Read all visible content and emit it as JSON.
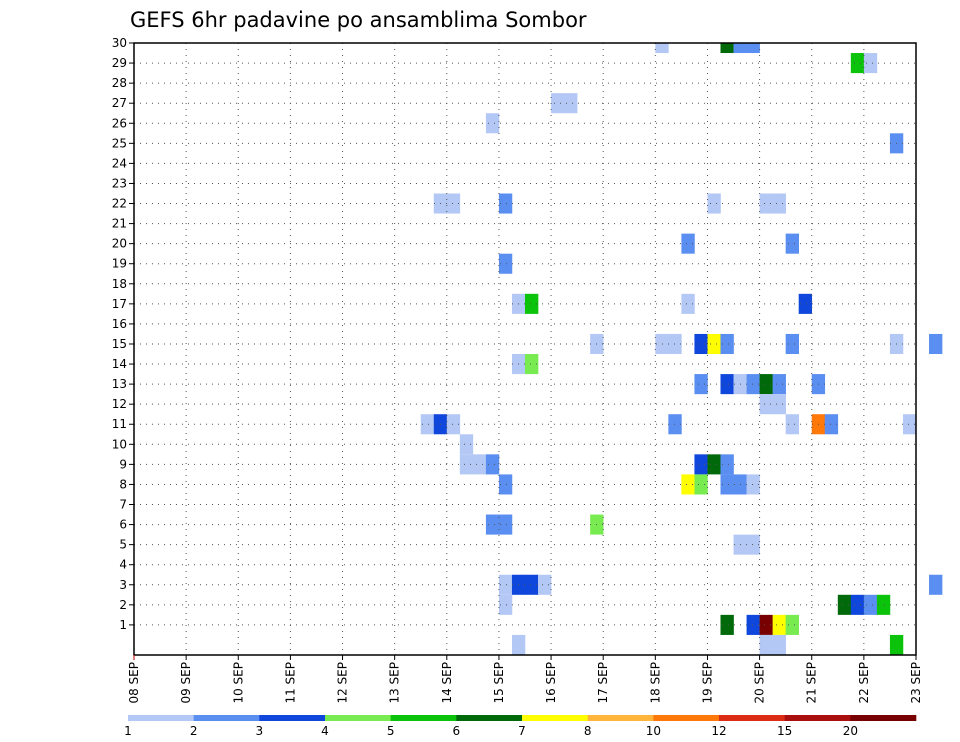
{
  "chart_data": {
    "type": "heatmap",
    "title": "GEFS 6hr padavine po ansamblima Sombor",
    "xlabel": "",
    "ylabel": "",
    "x_start": "2021-09-08",
    "x_ticks": [
      "08 SEP",
      "09 SEP",
      "10 SEP",
      "11 SEP",
      "12 SEP",
      "13 SEP",
      "14 SEP",
      "15 SEP",
      "16 SEP",
      "17 SEP",
      "18 SEP",
      "19 SEP",
      "20 SEP",
      "21 SEP",
      "22 SEP",
      "23 SEP"
    ],
    "y_ticks": [
      "1",
      "2",
      "3",
      "4",
      "5",
      "6",
      "7",
      "8",
      "9",
      "10",
      "11",
      "12",
      "13",
      "14",
      "15",
      "16",
      "17",
      "18",
      "19",
      "20",
      "21",
      "22",
      "23",
      "24",
      "25",
      "26",
      "27",
      "28",
      "29",
      "30"
    ],
    "ylim": [
      0,
      30
    ],
    "grid": true,
    "legend": {
      "placement": "bottom",
      "labels": [
        "1",
        "2",
        "3",
        "4",
        "5",
        "6",
        "7",
        "8",
        "10",
        "12",
        "15",
        "20"
      ],
      "colors": [
        "#b4c8f5",
        "#5a8ef0",
        "#0f46dc",
        "#78eb50",
        "#0ac30a",
        "#00690a",
        "#ffff00",
        "#ffb43c",
        "#ff780a",
        "#dc2d14",
        "#aa0f0f",
        "#780000"
      ]
    },
    "cells": [
      {
        "x": "09-19 06",
        "member": 30,
        "level": 6
      },
      {
        "x": "09-19 12",
        "member": 30,
        "level": 2
      },
      {
        "x": "09-18 00",
        "member": 30,
        "level": 1
      },
      {
        "x": "09-19 18",
        "member": 30,
        "level": 2
      },
      {
        "x": "09-21 18",
        "member": 29,
        "level": 5
      },
      {
        "x": "09-22 00",
        "member": 29,
        "level": 1
      },
      {
        "x": "09-16 00",
        "member": 27,
        "level": 1
      },
      {
        "x": "09-16 06",
        "member": 27,
        "level": 1
      },
      {
        "x": "09-14 18",
        "member": 26,
        "level": 1
      },
      {
        "x": "09-22 12",
        "member": 25,
        "level": 2
      },
      {
        "x": "09-13 18",
        "member": 22,
        "level": 1
      },
      {
        "x": "09-14 00",
        "member": 22,
        "level": 1
      },
      {
        "x": "09-15 00",
        "member": 22,
        "level": 2
      },
      {
        "x": "09-19 00",
        "member": 22,
        "level": 1
      },
      {
        "x": "09-20 06",
        "member": 22,
        "level": 1
      },
      {
        "x": "09-20 00",
        "member": 22,
        "level": 1
      },
      {
        "x": "09-18 12",
        "member": 20,
        "level": 2
      },
      {
        "x": "09-20 12",
        "member": 20,
        "level": 2
      },
      {
        "x": "09-15 00",
        "member": 19,
        "level": 2
      },
      {
        "x": "09-15 06",
        "member": 17,
        "level": 1
      },
      {
        "x": "09-15 12",
        "member": 17,
        "level": 5
      },
      {
        "x": "09-18 12",
        "member": 17,
        "level": 1
      },
      {
        "x": "09-20 18",
        "member": 17,
        "level": 3
      },
      {
        "x": "09-16 18",
        "member": 15,
        "level": 1
      },
      {
        "x": "09-18 00",
        "member": 15,
        "level": 1
      },
      {
        "x": "09-18 06",
        "member": 15,
        "level": 1
      },
      {
        "x": "09-18 18",
        "member": 15,
        "level": 3
      },
      {
        "x": "09-19 00",
        "member": 15,
        "level": 7
      },
      {
        "x": "09-19 06",
        "member": 15,
        "level": 2
      },
      {
        "x": "09-20 12",
        "member": 15,
        "level": 2
      },
      {
        "x": "09-22 12",
        "member": 15,
        "level": 1
      },
      {
        "x": "09-23 06",
        "member": 15,
        "level": 2
      },
      {
        "x": "09-15 06",
        "member": 14,
        "level": 1
      },
      {
        "x": "09-15 12",
        "member": 14,
        "level": 4
      },
      {
        "x": "09-18 18",
        "member": 13,
        "level": 2
      },
      {
        "x": "09-19 06",
        "member": 13,
        "level": 3
      },
      {
        "x": "09-19 12",
        "member": 13,
        "level": 1
      },
      {
        "x": "09-19 18",
        "member": 13,
        "level": 2
      },
      {
        "x": "09-20 00",
        "member": 13,
        "level": 6
      },
      {
        "x": "09-20 06",
        "member": 13,
        "level": 2
      },
      {
        "x": "09-21 00",
        "member": 13,
        "level": 2
      },
      {
        "x": "09-20 06",
        "member": 12,
        "level": 1
      },
      {
        "x": "09-20 00",
        "member": 12,
        "level": 1
      },
      {
        "x": "09-13 12",
        "member": 11,
        "level": 1
      },
      {
        "x": "09-13 18",
        "member": 11,
        "level": 3
      },
      {
        "x": "09-14 00",
        "member": 11,
        "level": 1
      },
      {
        "x": "09-18 06",
        "member": 11,
        "level": 2
      },
      {
        "x": "09-20 12",
        "member": 11,
        "level": 1
      },
      {
        "x": "09-21 00",
        "member": 11,
        "level": 9
      },
      {
        "x": "09-21 06",
        "member": 11,
        "level": 2
      },
      {
        "x": "09-22 18",
        "member": 11,
        "level": 1
      },
      {
        "x": "09-14 06",
        "member": 10,
        "level": 1
      },
      {
        "x": "09-14 06",
        "member": 9,
        "level": 1
      },
      {
        "x": "09-14 12",
        "member": 9,
        "level": 1
      },
      {
        "x": "09-14 18",
        "member": 9,
        "level": 2
      },
      {
        "x": "09-18 18",
        "member": 9,
        "level": 3
      },
      {
        "x": "09-19 00",
        "member": 9,
        "level": 6
      },
      {
        "x": "09-19 06",
        "member": 9,
        "level": 2
      },
      {
        "x": "09-15 00",
        "member": 8,
        "level": 2
      },
      {
        "x": "09-18 12",
        "member": 8,
        "level": 7
      },
      {
        "x": "09-18 18",
        "member": 8,
        "level": 4
      },
      {
        "x": "09-19 06",
        "member": 8,
        "level": 2
      },
      {
        "x": "09-19 12",
        "member": 8,
        "level": 2
      },
      {
        "x": "09-19 18",
        "member": 8,
        "level": 1
      },
      {
        "x": "09-14 18",
        "member": 6,
        "level": 2
      },
      {
        "x": "09-15 00",
        "member": 6,
        "level": 2
      },
      {
        "x": "09-16 18",
        "member": 6,
        "level": 4
      },
      {
        "x": "09-19 12",
        "member": 5,
        "level": 1
      },
      {
        "x": "09-19 18",
        "member": 5,
        "level": 1
      },
      {
        "x": "09-15 00",
        "member": 3,
        "level": 1
      },
      {
        "x": "09-15 06",
        "member": 3,
        "level": 3
      },
      {
        "x": "09-15 12",
        "member": 3,
        "level": 3
      },
      {
        "x": "09-15 18",
        "member": 3,
        "level": 1
      },
      {
        "x": "09-23 06",
        "member": 3,
        "level": 2
      },
      {
        "x": "09-15 00",
        "member": 2,
        "level": 1
      },
      {
        "x": "09-21 12",
        "member": 2,
        "level": 6
      },
      {
        "x": "09-21 18",
        "member": 2,
        "level": 3
      },
      {
        "x": "09-22 00",
        "member": 2,
        "level": 2
      },
      {
        "x": "09-22 06",
        "member": 2,
        "level": 5
      },
      {
        "x": "09-19 06",
        "member": 1,
        "level": 6
      },
      {
        "x": "09-19 18",
        "member": 1,
        "level": 3
      },
      {
        "x": "09-20 00",
        "member": 1,
        "level": 12
      },
      {
        "x": "09-20 06",
        "member": 1,
        "level": 7
      },
      {
        "x": "09-20 12",
        "member": 1,
        "level": 4
      },
      {
        "x": "09-15 06",
        "member": 0,
        "level": 1
      },
      {
        "x": "09-20 00",
        "member": 0,
        "level": 1
      },
      {
        "x": "09-20 06",
        "member": 0,
        "level": 1
      },
      {
        "x": "09-22 12",
        "member": 0,
        "level": 5
      }
    ]
  }
}
